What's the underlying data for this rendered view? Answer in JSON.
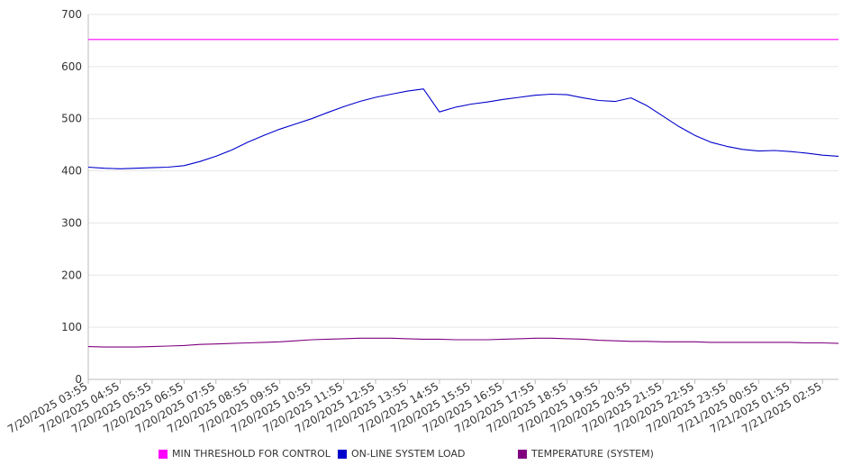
{
  "chart_data": {
    "type": "line",
    "ylim": [
      0,
      700
    ],
    "yticks": [
      0,
      100,
      200,
      300,
      400,
      500,
      600,
      700
    ],
    "grid": true,
    "legend_position": "bottom",
    "x_tick_labels": [
      "7/20/2025 03:55",
      "7/20/2025 04:55",
      "7/20/2025 05:55",
      "7/20/2025 06:55",
      "7/20/2025 07:55",
      "7/20/2025 08:55",
      "7/20/2025 09:55",
      "7/20/2025 10:55",
      "7/20/2025 11:55",
      "7/20/2025 12:55",
      "7/20/2025 13:55",
      "7/20/2025 14:55",
      "7/20/2025 15:55",
      "7/20/2025 16:55",
      "7/20/2025 17:55",
      "7/20/2025 18:55",
      "7/20/2025 19:55",
      "7/20/2025 20:55",
      "7/20/2025 21:55",
      "7/20/2025 22:55",
      "7/20/2025 23:55",
      "7/21/2025 00:55",
      "7/21/2025 01:55",
      "7/21/2025 02:55"
    ],
    "x": [
      "7/20/2025 03:55",
      "7/20/2025 04:25",
      "7/20/2025 04:55",
      "7/20/2025 05:25",
      "7/20/2025 05:55",
      "7/20/2025 06:25",
      "7/20/2025 06:55",
      "7/20/2025 07:25",
      "7/20/2025 07:55",
      "7/20/2025 08:25",
      "7/20/2025 08:55",
      "7/20/2025 09:25",
      "7/20/2025 09:55",
      "7/20/2025 10:25",
      "7/20/2025 10:55",
      "7/20/2025 11:25",
      "7/20/2025 11:55",
      "7/20/2025 12:25",
      "7/20/2025 12:55",
      "7/20/2025 13:25",
      "7/20/2025 13:55",
      "7/20/2025 14:25",
      "7/20/2025 14:55",
      "7/20/2025 15:25",
      "7/20/2025 15:55",
      "7/20/2025 16:25",
      "7/20/2025 16:55",
      "7/20/2025 17:25",
      "7/20/2025 17:55",
      "7/20/2025 18:25",
      "7/20/2025 18:55",
      "7/20/2025 19:25",
      "7/20/2025 19:55",
      "7/20/2025 20:25",
      "7/20/2025 20:55",
      "7/20/2025 21:25",
      "7/20/2025 21:55",
      "7/20/2025 22:25",
      "7/20/2025 22:55",
      "7/20/2025 23:25",
      "7/20/2025 23:55",
      "7/21/2025 00:25",
      "7/21/2025 00:55",
      "7/21/2025 01:25",
      "7/21/2025 01:55",
      "7/21/2025 02:25",
      "7/21/2025 02:55",
      "7/21/2025 03:25"
    ],
    "series": [
      {
        "name": "MIN THRESHOLD FOR CONTROL",
        "color": "#ff00ff",
        "values": [
          652,
          652,
          652,
          652,
          652,
          652,
          652,
          652,
          652,
          652,
          652,
          652,
          652,
          652,
          652,
          652,
          652,
          652,
          652,
          652,
          652,
          652,
          652,
          652,
          652,
          652,
          652,
          652,
          652,
          652,
          652,
          652,
          652,
          652,
          652,
          652,
          652,
          652,
          652,
          652,
          652,
          652,
          652,
          652,
          652,
          652,
          652,
          652
        ]
      },
      {
        "name": "ON-LINE SYSTEM LOAD",
        "color": "#0000cc",
        "values": [
          407,
          405,
          404,
          405,
          406,
          407,
          410,
          418,
          428,
          440,
          455,
          468,
          480,
          490,
          500,
          512,
          523,
          533,
          541,
          547,
          553,
          557,
          513,
          522,
          528,
          532,
          537,
          541,
          545,
          547,
          546,
          540,
          535,
          533,
          540,
          525,
          505,
          485,
          468,
          455,
          447,
          441,
          438,
          439,
          437,
          434,
          430,
          428
        ]
      },
      {
        "name": "TEMPERATURE (SYSTEM)",
        "color": "#800080",
        "values": [
          63,
          62,
          62,
          62,
          63,
          64,
          65,
          67,
          68,
          69,
          70,
          71,
          72,
          74,
          76,
          77,
          78,
          79,
          79,
          79,
          78,
          77,
          77,
          76,
          76,
          76,
          77,
          78,
          79,
          79,
          78,
          77,
          75,
          74,
          73,
          73,
          72,
          72,
          72,
          71,
          71,
          71,
          71,
          71,
          71,
          70,
          70,
          69
        ]
      }
    ]
  }
}
